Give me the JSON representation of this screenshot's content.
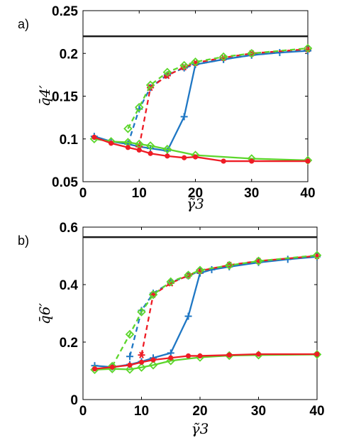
{
  "figure": {
    "panel_labels": [
      "a)",
      "b)"
    ]
  },
  "colors": {
    "blue": "#1f77c4",
    "red": "#ee1c25",
    "green": "#5dd62c",
    "black": "#1a1a1a"
  },
  "chart_data": [
    {
      "type": "line",
      "panel": "a)",
      "xlabel": "γ̃3",
      "ylabel": "q̄4′",
      "xlim": [
        0,
        40
      ],
      "ylim": [
        0.05,
        0.25
      ],
      "xticks": [
        "0",
        "10",
        "20",
        "30",
        "40"
      ],
      "yticks": [
        "0.05",
        "0.1",
        "0.15",
        "0.2",
        "0.25"
      ],
      "grid": false,
      "reference_line": 0.22,
      "series": [
        {
          "color": "blue",
          "marker": "plus",
          "dashed": false,
          "x": [
            2,
            5,
            8,
            10,
            12,
            15,
            18,
            20,
            25,
            30,
            35,
            40
          ],
          "y": [
            0.103,
            0.097,
            0.094,
            0.091,
            0.089,
            0.086,
            0.126,
            0.187,
            0.193,
            0.198,
            0.201,
            0.203
          ]
        },
        {
          "color": "blue",
          "marker": "plus",
          "dashed": true,
          "x": [
            8,
            10,
            12,
            15,
            18,
            20,
            25,
            30,
            40
          ],
          "y": [
            0.094,
            0.135,
            0.16,
            0.175,
            0.183,
            0.187,
            0.193,
            0.198,
            0.204
          ]
        },
        {
          "color": "red",
          "marker": "asterisk",
          "dashed": true,
          "x": [
            10,
            12,
            15,
            18,
            20,
            25,
            30,
            40
          ],
          "y": [
            0.091,
            0.16,
            0.174,
            0.184,
            0.189,
            0.195,
            0.2,
            0.205
          ]
        },
        {
          "color": "green",
          "marker": "diamond",
          "dashed": true,
          "x": [
            8,
            10,
            12,
            15,
            18,
            20,
            25,
            30,
            40
          ],
          "y": [
            0.112,
            0.137,
            0.163,
            0.178,
            0.186,
            0.19,
            0.196,
            0.2,
            0.206
          ]
        },
        {
          "color": "green",
          "marker": "diamond",
          "dashed": false,
          "x": [
            2,
            5,
            8,
            10,
            12,
            15,
            20,
            30,
            40
          ],
          "y": [
            0.1,
            0.097,
            0.096,
            0.094,
            0.092,
            0.088,
            0.081,
            0.077,
            0.075
          ]
        },
        {
          "color": "red",
          "marker": "dot",
          "dashed": false,
          "x": [
            2,
            5,
            8,
            10,
            12,
            15,
            18,
            20,
            25,
            30,
            40
          ],
          "y": [
            0.102,
            0.095,
            0.09,
            0.087,
            0.083,
            0.08,
            0.078,
            0.079,
            0.074,
            0.074,
            0.074
          ]
        }
      ]
    },
    {
      "type": "line",
      "panel": "b)",
      "xlabel": "γ̃3",
      "ylabel": "q̄6′",
      "xlim": [
        0,
        40
      ],
      "ylim": [
        0,
        0.6
      ],
      "xticks": [
        "0",
        "10",
        "20",
        "30",
        "40"
      ],
      "yticks": [
        "0",
        "0.2",
        "0.4",
        "0.6"
      ],
      "grid": false,
      "reference_line": 0.565,
      "series": [
        {
          "color": "blue",
          "marker": "plus",
          "dashed": false,
          "x": [
            2,
            5,
            8,
            10,
            12,
            15,
            18,
            20,
            22,
            25,
            30,
            35,
            40
          ],
          "y": [
            0.118,
            0.113,
            0.122,
            0.132,
            0.145,
            0.162,
            0.29,
            0.44,
            0.452,
            0.462,
            0.477,
            0.488,
            0.497
          ]
        },
        {
          "color": "blue",
          "marker": "plus",
          "dashed": true,
          "x": [
            8,
            10,
            12,
            15,
            18,
            20,
            25,
            30,
            40
          ],
          "y": [
            0.15,
            0.31,
            0.37,
            0.408,
            0.43,
            0.448,
            0.465,
            0.48,
            0.5
          ]
        },
        {
          "color": "red",
          "marker": "asterisk",
          "dashed": true,
          "x": [
            10,
            12,
            15,
            18,
            20,
            25,
            30,
            40
          ],
          "y": [
            0.155,
            0.365,
            0.405,
            0.432,
            0.448,
            0.468,
            0.482,
            0.5
          ]
        },
        {
          "color": "green",
          "marker": "diamond",
          "dashed": true,
          "x": [
            5,
            8,
            10,
            12,
            15,
            18,
            20,
            25,
            30,
            40
          ],
          "y": [
            0.116,
            0.227,
            0.305,
            0.365,
            0.41,
            0.433,
            0.45,
            0.467,
            0.482,
            0.502
          ]
        },
        {
          "color": "green",
          "marker": "diamond",
          "dashed": false,
          "x": [
            2,
            5,
            8,
            10,
            12,
            15,
            20,
            25,
            30,
            40
          ],
          "y": [
            0.104,
            0.107,
            0.105,
            0.112,
            0.12,
            0.135,
            0.147,
            0.153,
            0.155,
            0.157
          ]
        },
        {
          "color": "red",
          "marker": "dot",
          "dashed": false,
          "x": [
            2,
            5,
            8,
            10,
            12,
            15,
            18,
            20,
            25,
            30,
            40
          ],
          "y": [
            0.107,
            0.113,
            0.12,
            0.13,
            0.138,
            0.145,
            0.152,
            0.152,
            0.155,
            0.158,
            0.158
          ]
        }
      ]
    }
  ]
}
